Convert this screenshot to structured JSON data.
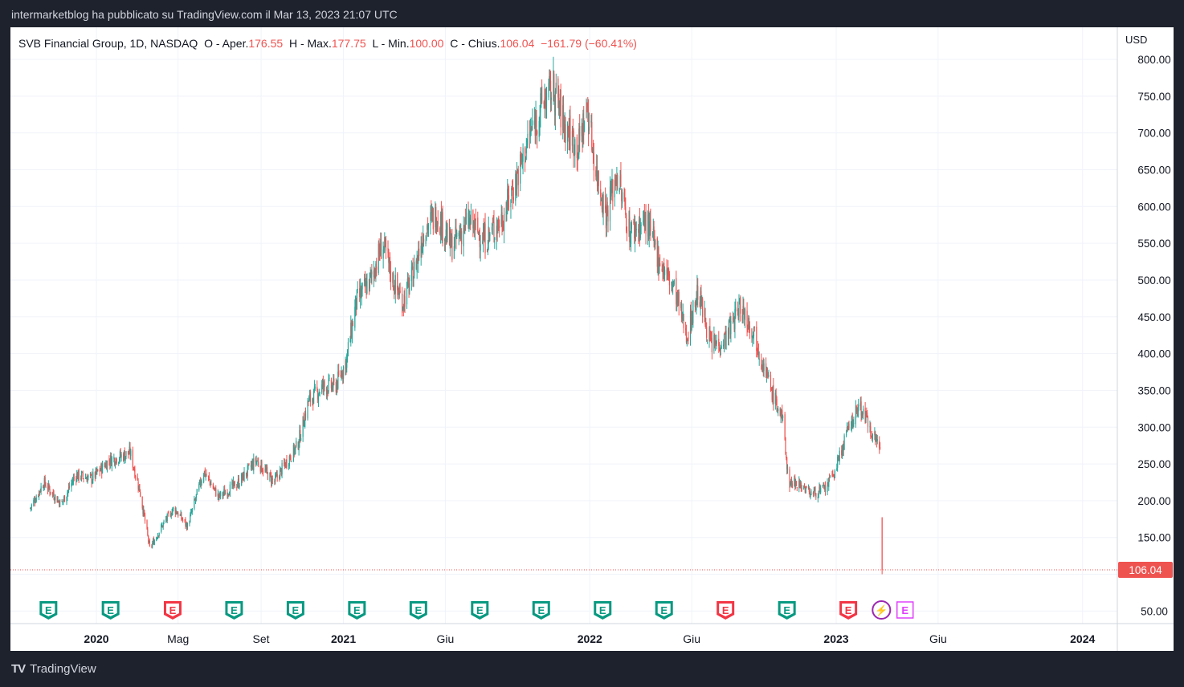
{
  "header": {
    "publish_line": "intermarketblog ha pubblicato su TradingView.com il Mar 13, 2023 21:07 UTC"
  },
  "legend": {
    "symbol": "SVB Financial Group, 1D, NASDAQ",
    "open_label": "O - Aper.",
    "open": "176.55",
    "high_label": "H - Max.",
    "high": "177.75",
    "low_label": "L - Min.",
    "low": "100.00",
    "close_label": "C - Chius.",
    "close": "106.04",
    "change": "−161.79 (−60.41%)"
  },
  "footer": {
    "brand": "TradingView",
    "logo": "TV"
  },
  "colors": {
    "up": "#26a69a",
    "down": "#ef5350",
    "grid": "#f0f3fa",
    "axis_text": "#131722",
    "price_tag": "#ef5350"
  },
  "chart_data": {
    "type": "candlestick",
    "currency": "USD",
    "y_ticks": [
      50,
      150,
      200,
      250,
      300,
      350,
      400,
      450,
      500,
      550,
      600,
      650,
      700,
      750,
      800
    ],
    "ylim": [
      25,
      820
    ],
    "x_ticks": [
      {
        "label": "2020",
        "date": "2020-01-01",
        "bold": true
      },
      {
        "label": "Mag",
        "date": "2020-05-01"
      },
      {
        "label": "Set",
        "date": "2020-09-01"
      },
      {
        "label": "2021",
        "date": "2021-01-01",
        "bold": true
      },
      {
        "label": "Giu",
        "date": "2021-06-01"
      },
      {
        "label": "2022",
        "date": "2022-01-01",
        "bold": true
      },
      {
        "label": "Giu",
        "date": "2022-06-01"
      },
      {
        "label": "2023",
        "date": "2023-01-01",
        "bold": true
      },
      {
        "label": "Giu",
        "date": "2023-06-01"
      },
      {
        "label": "2024",
        "date": "2024-01-01",
        "bold": true
      }
    ],
    "last_price": 106.04,
    "last_price_label": "106.04",
    "weekly_path": [
      [
        "2019-09-25",
        190
      ],
      [
        "2019-10-15",
        225
      ],
      [
        "2019-11-10",
        195
      ],
      [
        "2019-12-01",
        235
      ],
      [
        "2019-12-25",
        230
      ],
      [
        "2020-01-20",
        255
      ],
      [
        "2020-02-20",
        265
      ],
      [
        "2020-03-05",
        215
      ],
      [
        "2020-03-20",
        135
      ],
      [
        "2020-04-10",
        170
      ],
      [
        "2020-04-25",
        190
      ],
      [
        "2020-05-15",
        165
      ],
      [
        "2020-06-08",
        240
      ],
      [
        "2020-06-30",
        205
      ],
      [
        "2020-07-30",
        225
      ],
      [
        "2020-08-25",
        255
      ],
      [
        "2020-09-20",
        225
      ],
      [
        "2020-10-10",
        255
      ],
      [
        "2020-10-25",
        275
      ],
      [
        "2020-11-10",
        335
      ],
      [
        "2020-12-01",
        355
      ],
      [
        "2020-12-20",
        355
      ],
      [
        "2021-01-05",
        390
      ],
      [
        "2021-01-20",
        470
      ],
      [
        "2021-02-10",
        500
      ],
      [
        "2021-02-28",
        550
      ],
      [
        "2021-03-15",
        500
      ],
      [
        "2021-03-30",
        470
      ],
      [
        "2021-04-15",
        510
      ],
      [
        "2021-05-01",
        570
      ],
      [
        "2021-05-20",
        590
      ],
      [
        "2021-06-10",
        545
      ],
      [
        "2021-07-05",
        580
      ],
      [
        "2021-07-30",
        555
      ],
      [
        "2021-08-25",
        585
      ],
      [
        "2021-09-15",
        640
      ],
      [
        "2021-10-05",
        700
      ],
      [
        "2021-10-25",
        745
      ],
      [
        "2021-11-08",
        760
      ],
      [
        "2021-11-25",
        710
      ],
      [
        "2021-12-15",
        680
      ],
      [
        "2021-12-28",
        735
      ],
      [
        "2022-01-10",
        650
      ],
      [
        "2022-01-25",
        590
      ],
      [
        "2022-02-10",
        645
      ],
      [
        "2022-03-01",
        565
      ],
      [
        "2022-03-25",
        580
      ],
      [
        "2022-04-15",
        525
      ],
      [
        "2022-05-05",
        490
      ],
      [
        "2022-05-25",
        425
      ],
      [
        "2022-06-10",
        485
      ],
      [
        "2022-06-30",
        410
      ],
      [
        "2022-07-20",
        420
      ],
      [
        "2022-08-12",
        465
      ],
      [
        "2022-09-01",
        430
      ],
      [
        "2022-09-25",
        355
      ],
      [
        "2022-10-15",
        305
      ],
      [
        "2022-10-22",
        225
      ],
      [
        "2022-11-05",
        225
      ],
      [
        "2022-11-25",
        210
      ],
      [
        "2022-12-15",
        215
      ],
      [
        "2022-12-30",
        240
      ],
      [
        "2023-01-20",
        300
      ],
      [
        "2023-02-05",
        330
      ],
      [
        "2023-02-20",
        300
      ],
      [
        "2023-03-08",
        270
      ]
    ],
    "final_candle": {
      "date": "2023-03-10",
      "open": 176.55,
      "high": 177.75,
      "low": 100.0,
      "close": 106.04
    },
    "event_markers": [
      {
        "date": "2019-10-22",
        "label": "E",
        "kind": "earnings-up"
      },
      {
        "date": "2020-01-22",
        "label": "E",
        "kind": "earnings-up"
      },
      {
        "date": "2020-04-23",
        "label": "E",
        "kind": "earnings-down"
      },
      {
        "date": "2020-07-23",
        "label": "E",
        "kind": "earnings-up"
      },
      {
        "date": "2020-10-22",
        "label": "E",
        "kind": "earnings-up"
      },
      {
        "date": "2021-01-21",
        "label": "E",
        "kind": "earnings-up"
      },
      {
        "date": "2021-04-22",
        "label": "E",
        "kind": "earnings-up"
      },
      {
        "date": "2021-07-22",
        "label": "E",
        "kind": "earnings-up"
      },
      {
        "date": "2021-10-21",
        "label": "E",
        "kind": "earnings-up"
      },
      {
        "date": "2022-01-20",
        "label": "E",
        "kind": "earnings-up"
      },
      {
        "date": "2022-04-21",
        "label": "E",
        "kind": "earnings-up"
      },
      {
        "date": "2022-07-21",
        "label": "E",
        "kind": "earnings-down"
      },
      {
        "date": "2022-10-20",
        "label": "E",
        "kind": "earnings-up"
      },
      {
        "date": "2023-01-19",
        "label": "E",
        "kind": "earnings-down"
      },
      {
        "date": "2023-03-09",
        "label": "⚡",
        "kind": "event"
      },
      {
        "date": "2023-04-13",
        "label": "E",
        "kind": "earnings-upcoming"
      }
    ]
  }
}
